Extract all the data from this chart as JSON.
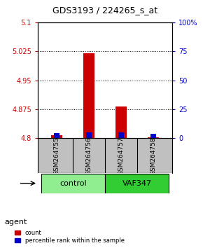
{
  "title": "GDS3193 / 224265_s_at",
  "samples": [
    "GSM264755",
    "GSM264756",
    "GSM264757",
    "GSM264758"
  ],
  "groups": [
    "control",
    "control",
    "VAF347",
    "VAF347"
  ],
  "group_labels": [
    "control",
    "VAF347"
  ],
  "group_colors": [
    "#90EE90",
    "#32CD32"
  ],
  "count_values": [
    4.808,
    5.02,
    4.882,
    4.803
  ],
  "percentile_values": [
    4.814,
    4.816,
    4.815,
    4.812
  ],
  "bar_base": 4.8,
  "ylim_left": [
    4.8,
    5.1
  ],
  "ylim_right": [
    0,
    100
  ],
  "yticks_left": [
    4.8,
    4.875,
    4.95,
    5.025,
    5.1
  ],
  "yticks_right": [
    0,
    25,
    50,
    75,
    100
  ],
  "ytick_labels_left": [
    "4.8",
    "4.875",
    "4.95",
    "5.025",
    "5.1"
  ],
  "ytick_labels_right": [
    "0",
    "25",
    "50",
    "75",
    "100%"
  ],
  "count_color": "#CC0000",
  "percentile_color": "#0000CC",
  "bar_width": 0.35,
  "background_color": "#ffffff",
  "grid_color": "#000000",
  "agent_label": "agent",
  "sample_bg_color": "#C0C0C0",
  "control_bg": "#90EE90",
  "vaf_bg": "#32CD32"
}
